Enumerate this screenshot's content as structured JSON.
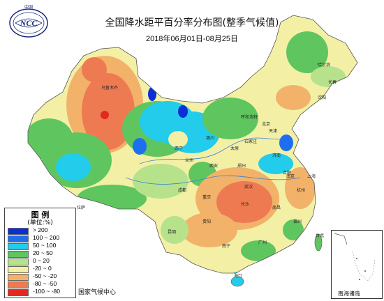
{
  "header": {
    "logo_text": "NCC",
    "logo_top_text": "中国",
    "title": "全国降水距平百分率分布图(整季气候值)",
    "date_range": "2018年06月01日-08月25日"
  },
  "legend": {
    "title": "图  例",
    "unit": "(单位:%)",
    "items": [
      {
        "label": "> 200",
        "color": "#0a2fd6"
      },
      {
        "label": "100 ~ 200",
        "color": "#1e6ff0"
      },
      {
        "label": "50 ~ 100",
        "color": "#22ccea"
      },
      {
        "label": "20 ~ 50",
        "color": "#5fc65f"
      },
      {
        "label": "0 ~ 20",
        "color": "#b6e28c"
      },
      {
        "label": "-20 ~ 0",
        "color": "#f3f0a6"
      },
      {
        "label": "-50 ~ -20",
        "color": "#f2b26a"
      },
      {
        "label": "-80 ~ -50",
        "color": "#ee7a52"
      },
      {
        "label": "-100 ~ -80",
        "color": "#e02a1e"
      }
    ]
  },
  "footer": {
    "source": "国家气候中心",
    "inset_label": "南海诸岛"
  },
  "map_labels": [
    "乌鲁木齐",
    "拉萨",
    "西宁",
    "兰州",
    "银川",
    "呼和浩特",
    "北京",
    "天津",
    "哈尔滨",
    "长春",
    "沈阳",
    "济南",
    "郑州",
    "南京",
    "上海",
    "杭州",
    "合肥",
    "武汉",
    "长沙",
    "南昌",
    "福州",
    "台北",
    "广州",
    "南宁",
    "海口",
    "贵阳",
    "昆明",
    "成都",
    "重庆",
    "西安",
    "太原",
    "石家庄"
  ]
}
